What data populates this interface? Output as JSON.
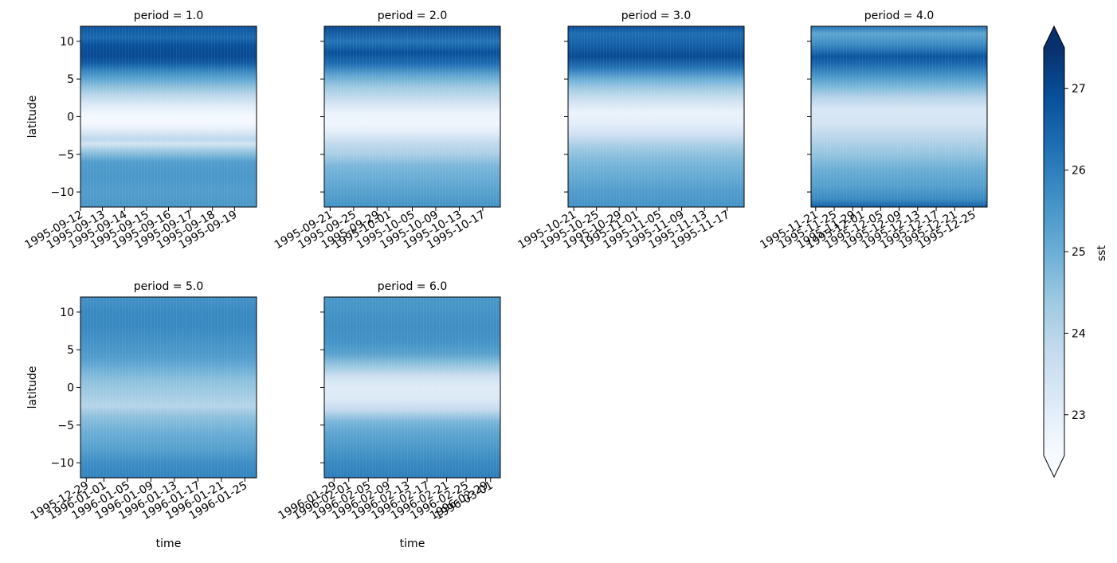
{
  "figure": {
    "facet_variable": "period",
    "colorbar": {
      "label": "sst",
      "ticks": [
        23,
        24,
        25,
        26,
        27
      ],
      "range": [
        22.5,
        27.5
      ],
      "extend": "both",
      "colormap": "Blues",
      "colors": [
        "#f7fbff",
        "#deebf7",
        "#c6dbef",
        "#9ecae1",
        "#6baed6",
        "#4292c6",
        "#2171b5",
        "#08519c",
        "#08306b"
      ]
    }
  },
  "chart_data": [
    {
      "type": "heatmap",
      "title": "period = 1.0",
      "xlabel": "",
      "ylabel": "latitude",
      "ylim": [
        -12,
        12
      ],
      "y_ticks": [
        -10,
        -5,
        0,
        5,
        10
      ],
      "x_tick_labels": [
        "1995-09-12",
        "1995-09-13",
        "1995-09-14",
        "1995-09-15",
        "1995-09-16",
        "1995-09-17",
        "1995-09-18",
        "1995-09-19"
      ],
      "x_range_dates": [
        "1995-09-12",
        "1995-09-20"
      ],
      "lat_profile": [
        [
          -12,
          25.5
        ],
        [
          -10,
          25.4
        ],
        [
          -8,
          25.5
        ],
        [
          -6,
          25.4
        ],
        [
          -4.8,
          24.6
        ],
        [
          -3.6,
          23.4
        ],
        [
          -3,
          23.9
        ],
        [
          -2,
          23.2
        ],
        [
          -1,
          22.6
        ],
        [
          0,
          22.6
        ],
        [
          1.5,
          23.1
        ],
        [
          3,
          24.0
        ],
        [
          4,
          24.6
        ],
        [
          5,
          25.2
        ],
        [
          6,
          25.8
        ],
        [
          7,
          26.6
        ],
        [
          8,
          27.0
        ],
        [
          9.5,
          26.9
        ],
        [
          10.5,
          26.4
        ],
        [
          12,
          26.8
        ]
      ]
    },
    {
      "type": "heatmap",
      "title": "period = 2.0",
      "xlabel": "",
      "ylabel": "",
      "ylim": [
        -12,
        12
      ],
      "y_ticks": [
        -10,
        -5,
        0,
        5,
        10
      ],
      "x_tick_labels": [
        "1995-09-21",
        "1995-09-25",
        "1995-09-29",
        "1995-10-01",
        "1995-10-05",
        "1995-10-09",
        "1995-10-13",
        "1995-10-17"
      ],
      "x_range_dates": [
        "1995-09-20",
        "1995-10-20"
      ],
      "lat_profile": [
        [
          -12,
          25.6
        ],
        [
          -10,
          25.3
        ],
        [
          -8,
          25.0
        ],
        [
          -6.5,
          24.8
        ],
        [
          -5,
          24.2
        ],
        [
          -3.5,
          23.8
        ],
        [
          -2,
          23.0
        ],
        [
          -1,
          22.7
        ],
        [
          0.5,
          22.8
        ],
        [
          2,
          23.5
        ],
        [
          4,
          24.4
        ],
        [
          5.5,
          25.2
        ],
        [
          7,
          26.3
        ],
        [
          8.5,
          26.9
        ],
        [
          10,
          26.2
        ],
        [
          12,
          27.0
        ]
      ]
    },
    {
      "type": "heatmap",
      "title": "period = 3.0",
      "xlabel": "",
      "ylabel": "",
      "ylim": [
        -12,
        12
      ],
      "y_ticks": [
        -10,
        -5,
        0,
        5,
        10
      ],
      "x_tick_labels": [
        "1995-10-21",
        "1995-10-25",
        "1995-10-29",
        "1995-11-01",
        "1995-11-05",
        "1995-11-09",
        "1995-11-13",
        "1995-11-17"
      ],
      "x_range_dates": [
        "1995-10-20",
        "1995-11-20"
      ],
      "lat_profile": [
        [
          -12,
          25.6
        ],
        [
          -10,
          25.4
        ],
        [
          -8,
          25.1
        ],
        [
          -6,
          24.8
        ],
        [
          -4,
          24.3
        ],
        [
          -2.5,
          23.6
        ],
        [
          -1,
          23.0
        ],
        [
          0.5,
          22.8
        ],
        [
          2,
          23.4
        ],
        [
          3.5,
          24.2
        ],
        [
          5,
          25.0
        ],
        [
          6.5,
          26.2
        ],
        [
          8,
          27.0
        ],
        [
          9.5,
          26.6
        ],
        [
          11,
          26.3
        ],
        [
          12,
          26.9
        ]
      ]
    },
    {
      "type": "heatmap",
      "title": "period = 4.0",
      "xlabel": "",
      "ylabel": "",
      "ylim": [
        -12,
        12
      ],
      "y_ticks": [
        -10,
        -5,
        0,
        5,
        10
      ],
      "x_tick_labels": [
        "1995-11-21",
        "1995-11-25",
        "1995-11-29",
        "1995-12-01",
        "1995-12-05",
        "1995-12-09",
        "1995-12-13",
        "1995-12-17",
        "1995-12-21",
        "1995-12-25"
      ],
      "x_range_dates": [
        "1995-11-20",
        "1995-12-28"
      ],
      "lat_profile": [
        [
          -12,
          26.6
        ],
        [
          -11,
          25.8
        ],
        [
          -9,
          25.3
        ],
        [
          -7,
          25.0
        ],
        [
          -5,
          24.5
        ],
        [
          -3,
          24.0
        ],
        [
          -1,
          23.4
        ],
        [
          1,
          23.3
        ],
        [
          2.5,
          24.0
        ],
        [
          4,
          24.8
        ],
        [
          5.5,
          25.6
        ],
        [
          7,
          26.4
        ],
        [
          8,
          26.8
        ],
        [
          9.5,
          25.8
        ],
        [
          11,
          25.2
        ],
        [
          12,
          26.2
        ]
      ]
    },
    {
      "type": "heatmap",
      "title": "period = 5.0",
      "xlabel": "time",
      "ylabel": "latitude",
      "ylim": [
        -12,
        12
      ],
      "y_ticks": [
        -10,
        -5,
        0,
        5,
        10
      ],
      "x_tick_labels": [
        "1995-12-29",
        "1996-01-01",
        "1996-01-05",
        "1996-01-09",
        "1996-01-13",
        "1996-01-17",
        "1996-01-21",
        "1996-01-25"
      ],
      "x_range_dates": [
        "1995-12-28",
        "1996-01-27"
      ],
      "lat_profile": [
        [
          -12,
          25.9
        ],
        [
          -10,
          25.7
        ],
        [
          -8,
          25.3
        ],
        [
          -6,
          25.0
        ],
        [
          -4,
          24.6
        ],
        [
          -2.5,
          24.0
        ],
        [
          -1,
          24.3
        ],
        [
          1,
          24.6
        ],
        [
          2.5,
          25.0
        ],
        [
          4,
          25.4
        ],
        [
          6,
          25.6
        ],
        [
          8,
          25.8
        ],
        [
          10,
          25.8
        ],
        [
          12,
          25.6
        ]
      ]
    },
    {
      "type": "heatmap",
      "title": "period = 6.0",
      "xlabel": "time",
      "ylabel": "",
      "ylim": [
        -12,
        12
      ],
      "y_ticks": [
        -10,
        -5,
        0,
        5,
        10
      ],
      "x_tick_labels": [
        "1996-01-29",
        "1996-02-01",
        "1996-02-05",
        "1996-02-09",
        "1996-02-13",
        "1996-02-17",
        "1996-02-21",
        "1996-02-25",
        "1996-02-29",
        "1996-03-01"
      ],
      "x_range_dates": [
        "1996-01-27",
        "1996-03-03"
      ],
      "lat_profile": [
        [
          -12,
          26.0
        ],
        [
          -10,
          25.8
        ],
        [
          -8,
          25.5
        ],
        [
          -6,
          25.2
        ],
        [
          -4.5,
          24.8
        ],
        [
          -3,
          23.8
        ],
        [
          -1.5,
          23.2
        ],
        [
          0,
          23.1
        ],
        [
          1.5,
          23.6
        ],
        [
          3,
          24.5
        ],
        [
          4.5,
          25.3
        ],
        [
          6,
          25.6
        ],
        [
          8,
          25.7
        ],
        [
          10,
          25.6
        ],
        [
          12,
          25.5
        ]
      ]
    }
  ]
}
